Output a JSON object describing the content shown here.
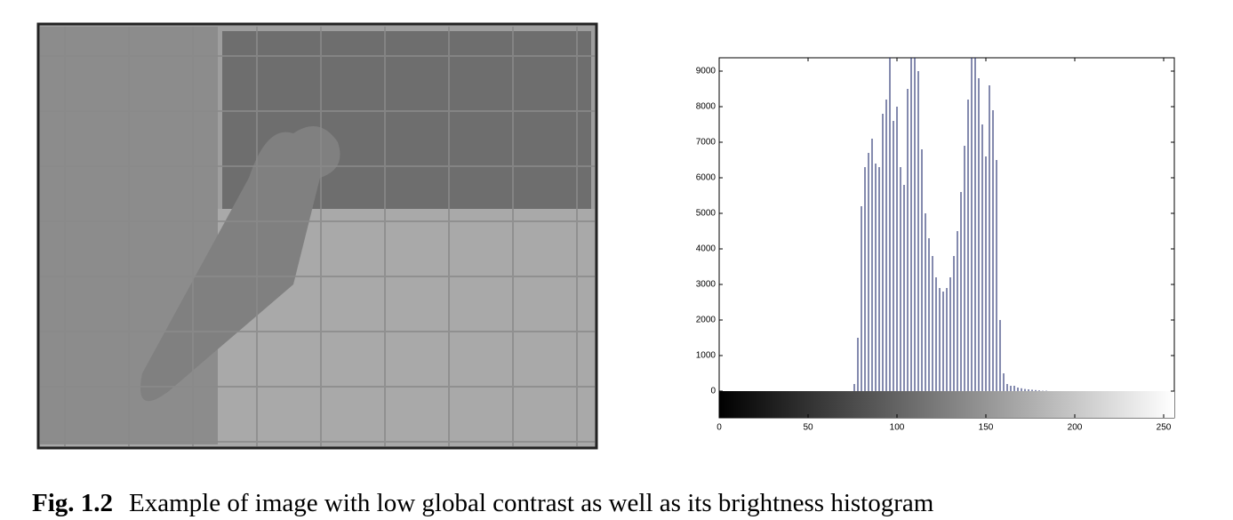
{
  "chart_data": {
    "type": "histogram",
    "x": [
      76,
      78,
      80,
      82,
      84,
      86,
      88,
      90,
      92,
      94,
      96,
      98,
      100,
      102,
      104,
      106,
      108,
      110,
      112,
      114,
      116,
      118,
      120,
      122,
      124,
      126,
      128,
      130,
      132,
      134,
      136,
      138,
      140,
      142,
      144,
      146,
      148,
      150,
      152,
      154,
      156,
      158,
      160,
      162,
      164,
      166,
      168,
      170,
      172,
      174,
      176,
      178,
      180,
      182,
      184
    ],
    "values": [
      200,
      1500,
      5200,
      6300,
      6700,
      7100,
      6400,
      6300,
      7800,
      8200,
      9400,
      7600,
      8000,
      6300,
      5800,
      8500,
      9400,
      9400,
      9000,
      6800,
      5000,
      4300,
      3800,
      3200,
      2900,
      2800,
      2900,
      3200,
      3800,
      4500,
      5600,
      6900,
      8200,
      9400,
      9400,
      8800,
      7500,
      6600,
      8600,
      7900,
      6500,
      2000,
      500,
      200,
      150,
      150,
      100,
      80,
      60,
      50,
      40,
      30,
      20,
      10,
      10
    ],
    "color": "#1f2a6b",
    "xlim": [
      0,
      256
    ],
    "ylim": [
      -750,
      9375
    ],
    "xticks": [
      0,
      50,
      100,
      150,
      200,
      250
    ],
    "yticks": [
      0,
      1000,
      2000,
      3000,
      4000,
      5000,
      6000,
      7000,
      8000,
      9000
    ]
  },
  "caption": {
    "label": "Fig. 1.2",
    "text": "Example of image with low global contrast as well as its brightness histogram"
  }
}
